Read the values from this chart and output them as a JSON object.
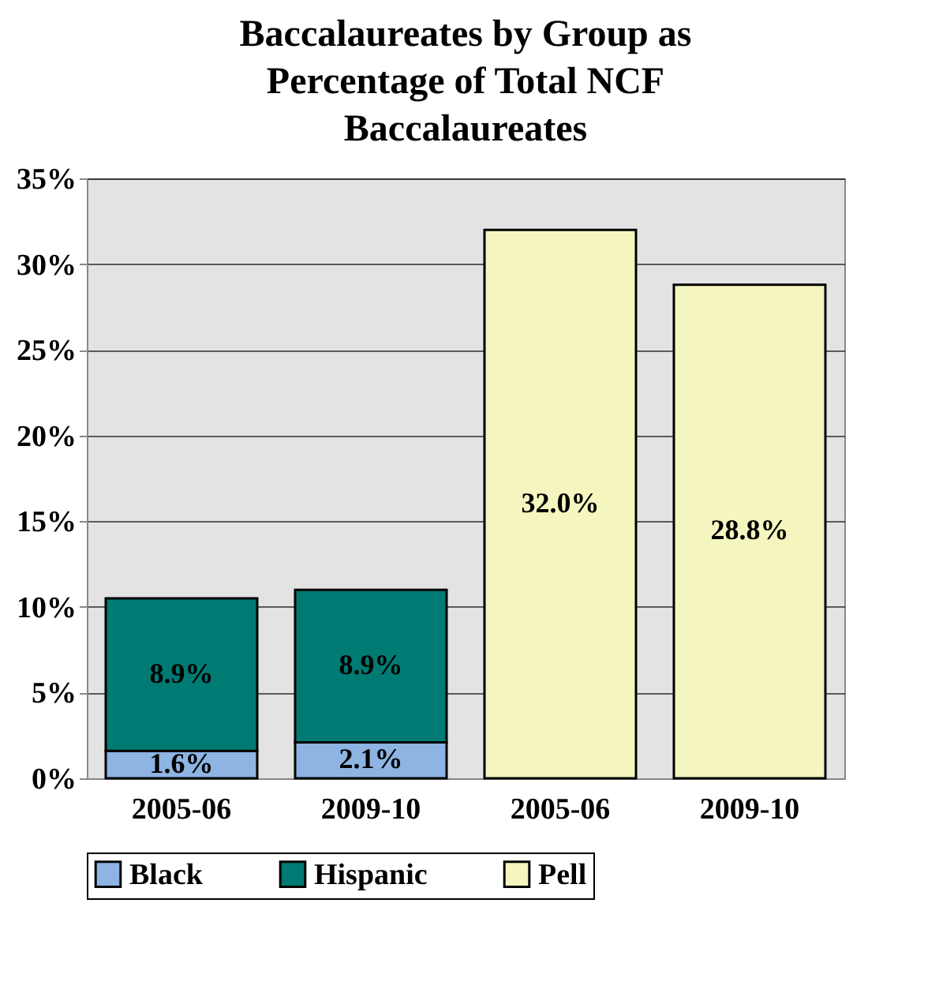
{
  "chart_data": {
    "type": "bar",
    "title": "Baccalaureates by Group as Percentage of Total NCF Baccalaureates",
    "categories": [
      "2005-06",
      "2009-10",
      "2005-06",
      "2009-10"
    ],
    "series": [
      {
        "name": "Black",
        "color": "#8db4e2",
        "values": [
          1.6,
          2.1,
          null,
          null
        ],
        "value_labels": [
          "1.6%",
          "2.1%",
          null,
          null
        ]
      },
      {
        "name": "Hispanic",
        "color": "#007b74",
        "values": [
          8.9,
          8.9,
          null,
          null
        ],
        "value_labels": [
          "8.9%",
          "8.9%",
          null,
          null
        ]
      },
      {
        "name": "Pell",
        "color": "#f5f5c0",
        "values": [
          null,
          null,
          32.0,
          28.8
        ],
        "value_labels": [
          null,
          null,
          "32.0%",
          "28.8%"
        ]
      }
    ],
    "stacked": true,
    "grid": "y",
    "legend": "bottom",
    "ylim": [
      0,
      35
    ],
    "yticks": [
      {
        "value": 0,
        "label": "0%"
      },
      {
        "value": 5,
        "label": "5%"
      },
      {
        "value": 10,
        "label": "10%"
      },
      {
        "value": 15,
        "label": "15%"
      },
      {
        "value": 20,
        "label": "20%"
      },
      {
        "value": 25,
        "label": "25%"
      },
      {
        "value": 30,
        "label": "30%"
      },
      {
        "value": 35,
        "label": "35%"
      }
    ]
  }
}
